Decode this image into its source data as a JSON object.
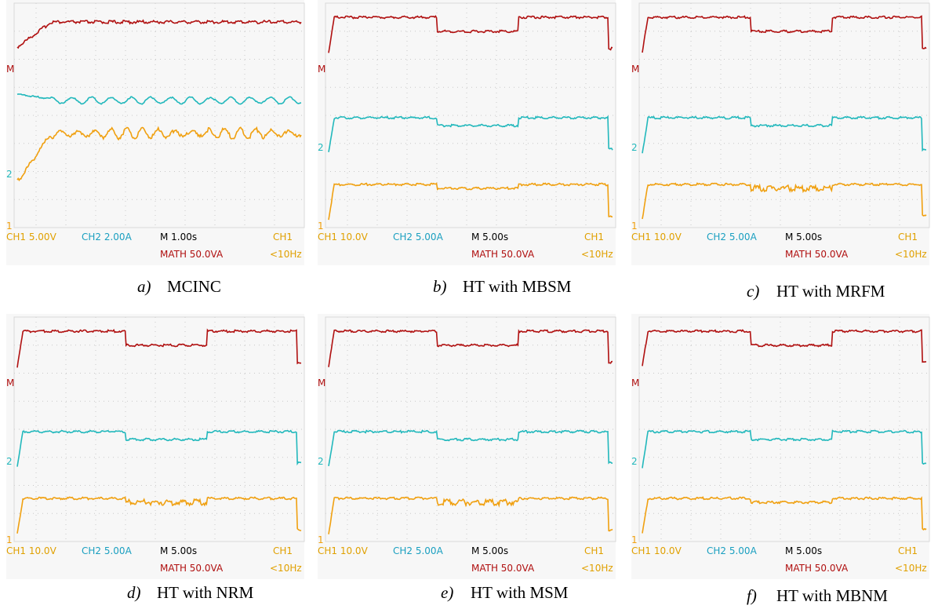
{
  "panels": [
    {
      "label": "a)",
      "caption": "MCINC",
      "ch1": "CH1  5.00V",
      "ch2": "CH2  2.00A",
      "time": "M 1.00s",
      "math": "MATH 50.0VA",
      "trigger": "CH1",
      "freq": "<10Hz",
      "markers": {
        "math": "M",
        "ch2": "2",
        "ch1": "1"
      }
    },
    {
      "label": "b)",
      "caption": "HT with MBSM",
      "ch1": "CH1  10.0V",
      "ch2": "CH2  5.00A",
      "time": "M 5.00s",
      "math": "MATH 50.0VA",
      "trigger": "CH1",
      "freq": "<10Hz",
      "markers": {
        "math": "M",
        "ch2": "2",
        "ch1": "1"
      }
    },
    {
      "label": "c)",
      "caption": "HT with MRFM",
      "ch1": "CH1  10.0V",
      "ch2": "CH2  5.00A",
      "time": "M 5.00s",
      "math": "MATH 50.0VA",
      "trigger": "CH1",
      "freq": "<10Hz",
      "markers": {
        "math": "M",
        "ch2": "2",
        "ch1": "1"
      }
    },
    {
      "label": "d)",
      "caption": "HT with NRM",
      "ch1": "CH1  10.0V",
      "ch2": "CH2  5.00A",
      "time": "M 5.00s",
      "math": "MATH 50.0VA",
      "trigger": "CH1",
      "freq": "<10Hz",
      "markers": {
        "math": "M",
        "ch2": "2",
        "ch1": "1"
      }
    },
    {
      "label": "e)",
      "caption": "HT with MSM",
      "ch1": "CH1  10.0V",
      "ch2": "CH2  5.00A",
      "time": "M 5.00s",
      "math": "MATH 50.0VA",
      "trigger": "CH1",
      "freq": "<10Hz",
      "markers": {
        "math": "M",
        "ch2": "2",
        "ch1": "1"
      }
    },
    {
      "label": "f)",
      "caption": "HT with MBNM",
      "ch1": "CH1  10.0V",
      "ch2": "CH2  5.00A",
      "time": "M 5.00s",
      "math": "MATH 50.0VA",
      "trigger": "CH1",
      "freq": "<10Hz",
      "markers": {
        "math": "M",
        "ch2": "2",
        "ch1": "1"
      }
    }
  ]
}
